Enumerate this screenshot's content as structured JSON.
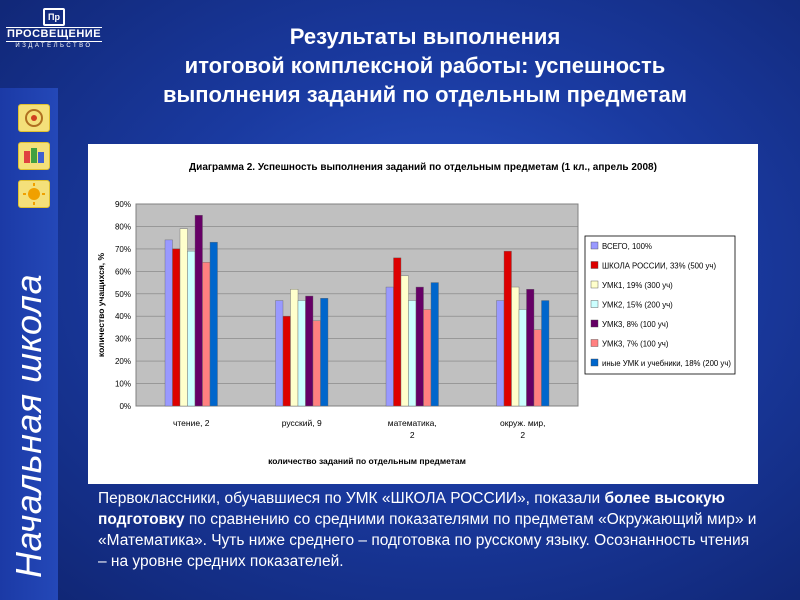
{
  "header": {
    "logo_mark": "Пр",
    "logo_name": "ПРОСВЕЩЕНИЕ",
    "logo_sub": "ИЗДАТЕЛЬСТВО",
    "title_lines": [
      "Результаты выполнения",
      "итоговой комплексной работы: успешность",
      "выполнения заданий по отдельным предметам"
    ]
  },
  "sidebar": {
    "vertical_title": "Начальная школа",
    "icons": [
      "emblem-icon",
      "books-icon",
      "sun-icon"
    ]
  },
  "chart_data": {
    "type": "bar",
    "title": "Диаграмма 2. Успешность выполнения заданий по отдельным предметам (1 кл., апрель 2008)",
    "xlabel": "количество заданий по отдельным предметам",
    "ylabel": "количество учащихся, %",
    "ylim": [
      0,
      90
    ],
    "yticks": [
      "0%",
      "10%",
      "20%",
      "30%",
      "40%",
      "50%",
      "60%",
      "70%",
      "80%",
      "90%"
    ],
    "grid": true,
    "legend_position": "right",
    "categories": [
      [
        "чтение, 2"
      ],
      [
        "русский, 9"
      ],
      [
        "математика,",
        "2"
      ],
      [
        "окруж. мир,",
        "2"
      ]
    ],
    "series": [
      {
        "name": "ВСЕГО, 100%",
        "color": "#9999ff",
        "values": [
          74,
          47,
          53,
          47
        ]
      },
      {
        "name": "ШКОЛА РОССИИ, 33% (500 уч)",
        "color": "#dd0000",
        "values": [
          70,
          40,
          66,
          69
        ]
      },
      {
        "name": "УМК1, 19% (300 уч)",
        "color": "#ffffcc",
        "values": [
          79,
          52,
          58,
          53
        ]
      },
      {
        "name": "УМК2, 15% (200 уч)",
        "color": "#ccffff",
        "values": [
          69,
          47,
          47,
          43
        ]
      },
      {
        "name": "УМК3, 8% (100 уч)",
        "color": "#660066",
        "values": [
          85,
          49,
          53,
          52
        ]
      },
      {
        "name": "УМК3, 7% (100 уч)",
        "color": "#ff8080",
        "values": [
          64,
          38,
          43,
          34
        ]
      },
      {
        "name": "иные УМК и учебники, 18% (200 уч)",
        "color": "#0066cc",
        "values": [
          73,
          48,
          55,
          47
        ]
      }
    ]
  },
  "body": {
    "p1": "Первоклассники, обучавшиеся по УМК «ШКОЛА РОССИИ», показали ",
    "p_bold": "более высокую подготовку",
    "p2": " по сравнению со средними показателями по предметам «Окружающий мир» и «Математика». Чуть ниже среднего – подготовка по русскому языку. Осознанность чтения – на уровне средних показателей."
  }
}
